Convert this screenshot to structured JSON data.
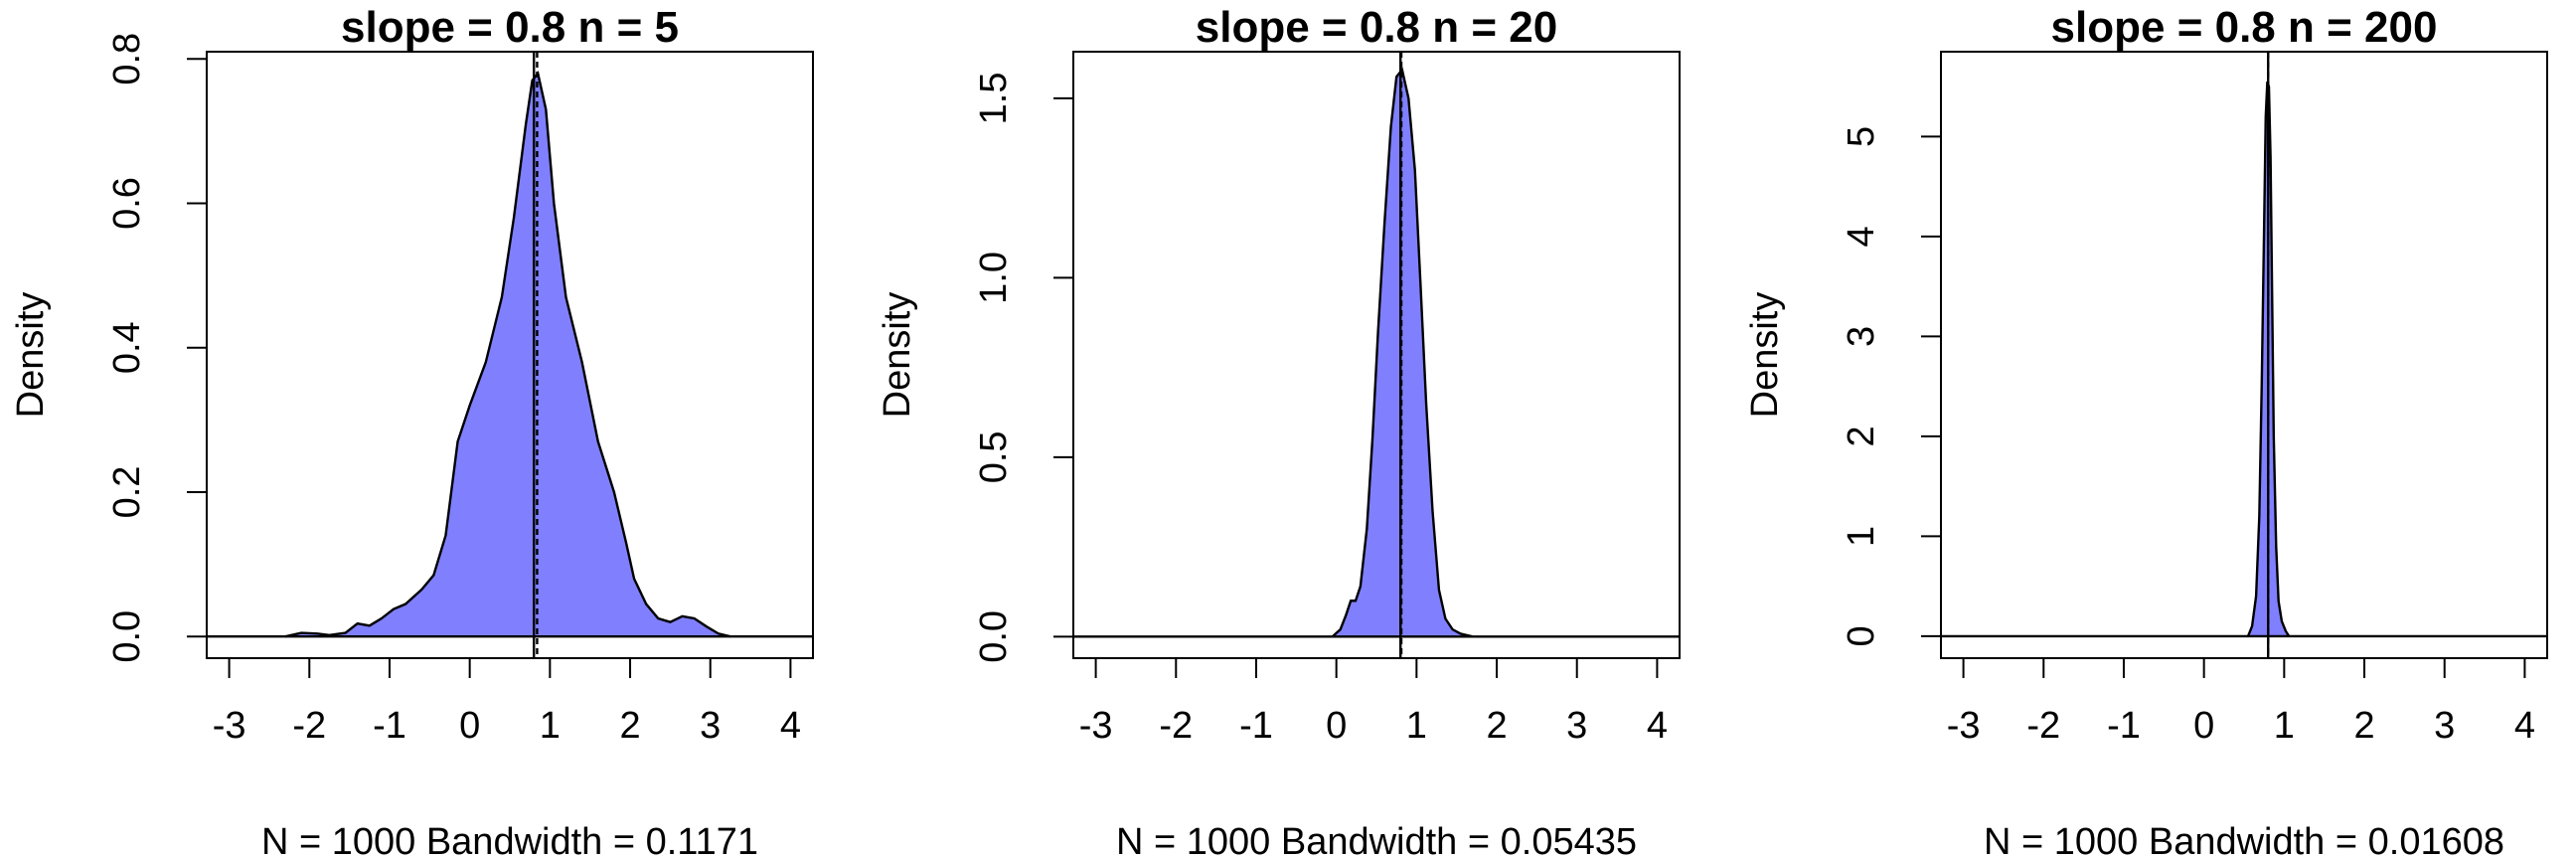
{
  "colors": {
    "fill": "#8080ff",
    "line": "#000000",
    "background": "#ffffff"
  },
  "chart_data": [
    {
      "type": "area",
      "title": "slope = 0.8 n = 5",
      "xlabel": "N = 1000   Bandwidth = 0.1171",
      "ylabel": "Density",
      "xlim": [
        -3.28,
        4.28
      ],
      "ylim": [
        -0.03,
        0.81
      ],
      "x_ticks": [
        -3,
        -2,
        -1,
        0,
        1,
        2,
        3,
        4
      ],
      "x_tick_labels": [
        "-3",
        "-2",
        "-1",
        "0",
        "1",
        "2",
        "3",
        "4"
      ],
      "y_ticks": [
        0,
        0.2,
        0.4,
        0.6,
        0.8
      ],
      "y_tick_labels": [
        "0.0",
        "0.2",
        "0.4",
        "0.6",
        "0.8"
      ],
      "reference_lines": [
        {
          "x": 0.8,
          "style": "solid"
        },
        {
          "x": 0.84,
          "style": "dashed"
        }
      ],
      "x": [
        -2.3,
        -2.1,
        -1.9,
        -1.75,
        -1.55,
        -1.4,
        -1.25,
        -1.1,
        -0.95,
        -0.8,
        -0.6,
        -0.45,
        -0.3,
        -0.15,
        0,
        0.2,
        0.4,
        0.55,
        0.7,
        0.78,
        0.85,
        0.95,
        1.05,
        1.2,
        1.4,
        1.6,
        1.8,
        1.95,
        2.05,
        2.2,
        2.35,
        2.5,
        2.65,
        2.8,
        2.95,
        3.1,
        3.25
      ],
      "y": [
        0,
        0.005,
        0.004,
        0.002,
        0.005,
        0.018,
        0.015,
        0.025,
        0.038,
        0.045,
        0.065,
        0.085,
        0.14,
        0.27,
        0.32,
        0.38,
        0.47,
        0.58,
        0.71,
        0.77,
        0.78,
        0.73,
        0.6,
        0.47,
        0.38,
        0.27,
        0.2,
        0.13,
        0.08,
        0.045,
        0.025,
        0.02,
        0.028,
        0.025,
        0.014,
        0.004,
        0
      ]
    },
    {
      "type": "area",
      "title": "slope = 0.8 n = 20",
      "xlabel": "N = 1000   Bandwidth = 0.05435",
      "ylabel": "Density",
      "xlim": [
        -3.28,
        4.28
      ],
      "ylim": [
        -0.06,
        1.63
      ],
      "x_ticks": [
        -3,
        -2,
        -1,
        0,
        1,
        2,
        3,
        4
      ],
      "x_tick_labels": [
        "-3",
        "-2",
        "-1",
        "0",
        "1",
        "2",
        "3",
        "4"
      ],
      "y_ticks": [
        0,
        0.5,
        1,
        1.5
      ],
      "y_tick_labels": [
        "0.0",
        "0.5",
        "1.0",
        "1.5"
      ],
      "reference_lines": [
        {
          "x": 0.8,
          "style": "solid"
        },
        {
          "x": 0.81,
          "style": "dashed"
        }
      ],
      "x": [
        -0.05,
        0.05,
        0.12,
        0.18,
        0.24,
        0.3,
        0.38,
        0.45,
        0.52,
        0.6,
        0.68,
        0.75,
        0.82,
        0.9,
        0.98,
        1.05,
        1.12,
        1.2,
        1.28,
        1.36,
        1.45,
        1.55,
        1.7
      ],
      "y": [
        0,
        0.02,
        0.06,
        0.1,
        0.1,
        0.14,
        0.3,
        0.55,
        0.85,
        1.15,
        1.42,
        1.56,
        1.58,
        1.5,
        1.3,
        0.98,
        0.65,
        0.35,
        0.13,
        0.05,
        0.02,
        0.008,
        0
      ]
    },
    {
      "type": "area",
      "title": "slope = 0.8 n = 200",
      "xlabel": "N = 1000   Bandwidth = 0.01608",
      "ylabel": "Density",
      "xlim": [
        -3.28,
        4.28
      ],
      "ylim": [
        -0.22,
        5.85
      ],
      "x_ticks": [
        -3,
        -2,
        -1,
        0,
        1,
        2,
        3,
        4
      ],
      "x_tick_labels": [
        "-3",
        "-2",
        "-1",
        "0",
        "1",
        "2",
        "3",
        "4"
      ],
      "y_ticks": [
        0,
        1,
        2,
        3,
        4,
        5
      ],
      "y_tick_labels": [
        "0",
        "1",
        "2",
        "3",
        "4",
        "5"
      ],
      "reference_lines": [
        {
          "x": 0.8,
          "style": "solid"
        },
        {
          "x": 0.8,
          "style": "dashed"
        }
      ],
      "x": [
        0.55,
        0.6,
        0.65,
        0.69,
        0.72,
        0.75,
        0.77,
        0.79,
        0.81,
        0.83,
        0.85,
        0.87,
        0.9,
        0.93,
        0.97,
        1.02,
        1.06
      ],
      "y": [
        0,
        0.1,
        0.4,
        1.2,
        2.5,
        4.1,
        5.2,
        5.55,
        5.5,
        4.8,
        3.4,
        2.0,
        0.9,
        0.35,
        0.15,
        0.05,
        0
      ]
    }
  ]
}
